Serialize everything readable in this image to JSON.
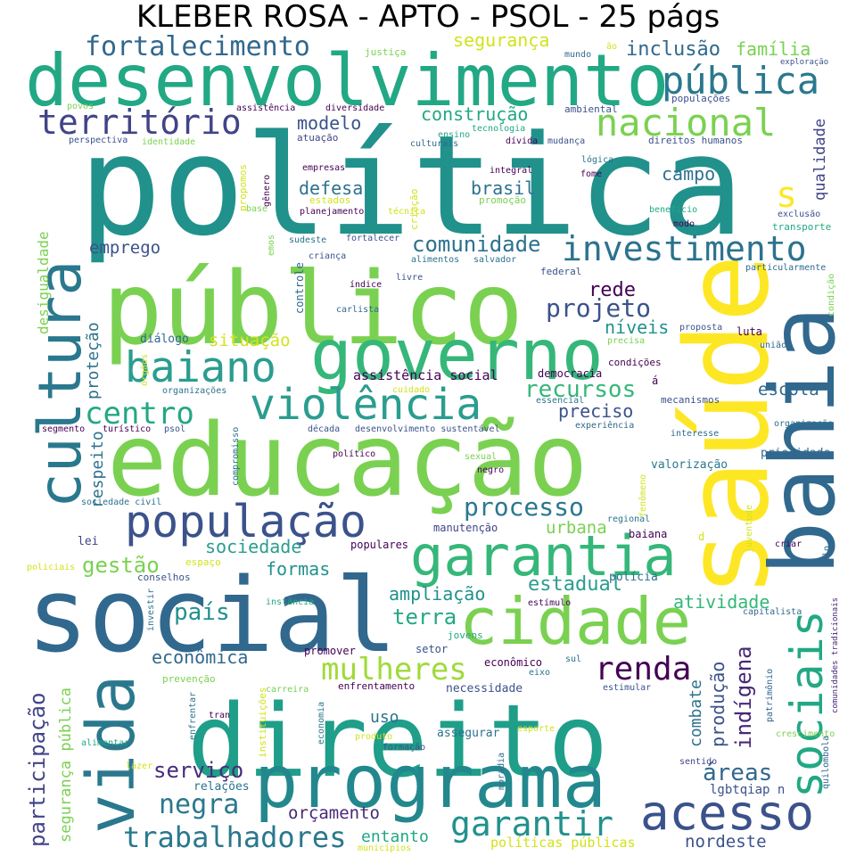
{
  "title": "KLEBER ROSA - APTO - PSOL - 25 págs",
  "words": [
    {
      "text": "política",
      "color": "#21918c"
    },
    {
      "text": "público",
      "color": "#7ad151"
    },
    {
      "text": "educação",
      "color": "#7ad151"
    },
    {
      "text": "social",
      "color": "#31688e"
    },
    {
      "text": "direito",
      "color": "#1f9e89"
    },
    {
      "text": "saúde",
      "color": "#fde725"
    },
    {
      "text": "bahia",
      "color": "#31688e"
    },
    {
      "text": "desenvolvimento",
      "color": "#22a884"
    },
    {
      "text": "programa",
      "color": "#23888e"
    },
    {
      "text": "cultura",
      "color": "#2a788e"
    },
    {
      "text": "vida",
      "color": "#2a788e"
    },
    {
      "text": "governo",
      "color": "#35b779"
    },
    {
      "text": "cidade",
      "color": "#7ad151"
    },
    {
      "text": "garantia",
      "color": "#35b779"
    },
    {
      "text": "população",
      "color": "#3b528b"
    },
    {
      "text": "violência",
      "color": "#2a9d8f"
    },
    {
      "text": "baiano",
      "color": "#2a9d8f"
    },
    {
      "text": "sociais",
      "color": "#22a884"
    },
    {
      "text": "acesso",
      "color": "#3b528b"
    },
    {
      "text": "pública",
      "color": "#2a788e"
    },
    {
      "text": "nacional",
      "color": "#7ad151"
    },
    {
      "text": "investimento",
      "color": "#2c728e"
    },
    {
      "text": "território",
      "color": "#414487"
    },
    {
      "text": "fortalecimento",
      "color": "#31688e"
    },
    {
      "text": "centro",
      "color": "#22a884"
    },
    {
      "text": "garantir",
      "color": "#21918c"
    },
    {
      "text": "mulheres",
      "color": "#a0da39"
    },
    {
      "text": "renda",
      "color": "#440154"
    },
    {
      "text": "processo",
      "color": "#2a788e"
    },
    {
      "text": "trabalhadores",
      "color": "#2a788e"
    },
    {
      "text": "negra",
      "color": "#2a788e"
    },
    {
      "text": "comunidade",
      "color": "#2c728e"
    },
    {
      "text": "s",
      "color": "#fde725"
    },
    {
      "text": "projeto",
      "color": "#3b528b"
    },
    {
      "text": "recursos",
      "color": "#35b779"
    },
    {
      "text": "gestão",
      "color": "#7ad151"
    },
    {
      "text": "país",
      "color": "#21918c"
    },
    {
      "text": "participação",
      "color": "#414487"
    },
    {
      "text": "áreas",
      "color": "#31688e"
    },
    {
      "text": "indígena",
      "color": "#482878"
    },
    {
      "text": "serviço",
      "color": "#472d7b"
    },
    {
      "text": "terra",
      "color": "#22a884"
    },
    {
      "text": "estadual",
      "color": "#2a9d8f"
    },
    {
      "text": "construção",
      "color": "#22a884"
    },
    {
      "text": "modelo",
      "color": "#3b528b"
    },
    {
      "text": "defesa",
      "color": "#2c728e"
    },
    {
      "text": "brasil",
      "color": "#2c728e"
    },
    {
      "text": "campo",
      "color": "#2c728e"
    },
    {
      "text": "inclusão",
      "color": "#31688e"
    },
    {
      "text": "família",
      "color": "#7ad151"
    },
    {
      "text": "segurança",
      "color": "#d2e21b"
    },
    {
      "text": "emprego",
      "color": "#3b528b"
    },
    {
      "text": "rede",
      "color": "#440154"
    },
    {
      "text": "níveis",
      "color": "#21918c"
    },
    {
      "text": "situação",
      "color": "#d2e21b"
    },
    {
      "text": "preciso",
      "color": "#3b528b"
    },
    {
      "text": "escola",
      "color": "#31688e"
    },
    {
      "text": "ampliação",
      "color": "#21918c"
    },
    {
      "text": "formas",
      "color": "#21918c"
    },
    {
      "text": "sociedade",
      "color": "#2a9d8f"
    },
    {
      "text": "urbana",
      "color": "#7ad151"
    },
    {
      "text": "econômica",
      "color": "#31688e"
    },
    {
      "text": "atividade",
      "color": "#35b779"
    },
    {
      "text": "produção",
      "color": "#3b528b"
    },
    {
      "text": "combate",
      "color": "#2c728e"
    },
    {
      "text": "orçamento",
      "color": "#482878"
    },
    {
      "text": "entanto",
      "color": "#22a884"
    },
    {
      "text": "nordeste",
      "color": "#3b528b"
    },
    {
      "text": "segurança pública",
      "color": "#7ad151"
    },
    {
      "text": "uso",
      "color": "#2c728e"
    },
    {
      "text": "qualidade",
      "color": "#414487"
    },
    {
      "text": "proteção",
      "color": "#2c728e"
    },
    {
      "text": "respeito",
      "color": "#2c728e"
    },
    {
      "text": "desigualdade",
      "color": "#7ad151"
    },
    {
      "text": "lgbtqiap n",
      "color": "#3b528b"
    },
    {
      "text": "políticas públicas",
      "color": "#d2e21b"
    },
    {
      "text": "relações",
      "color": "#2c728e"
    },
    {
      "text": "necessidade",
      "color": "#3b528b"
    },
    {
      "text": "assegurar",
      "color": "#2c728e"
    },
    {
      "text": "assistência social",
      "color": "#440154"
    },
    {
      "text": "valorização",
      "color": "#2a788e"
    },
    {
      "text": "prioridade",
      "color": "#31688e"
    },
    {
      "text": "lei",
      "color": "#414487"
    },
    {
      "text": "manutenção",
      "color": "#414487"
    },
    {
      "text": "baiana",
      "color": "#440154"
    },
    {
      "text": "luta",
      "color": "#440154"
    },
    {
      "text": "diálogo",
      "color": "#31688e"
    },
    {
      "text": "controle",
      "color": "#31688e"
    },
    {
      "text": "democracia",
      "color": "#440154"
    },
    {
      "text": "condições",
      "color": "#440154"
    },
    {
      "text": "mecanismos",
      "color": "#3b528b"
    },
    {
      "text": "econômico",
      "color": "#440154"
    },
    {
      "text": "promover",
      "color": "#440154"
    },
    {
      "text": "setor",
      "color": "#3b528b"
    },
    {
      "text": "jovens",
      "color": "#22a884"
    },
    {
      "text": "polícia",
      "color": "#2c728e"
    },
    {
      "text": "populares",
      "color": "#440154"
    },
    {
      "text": "espaço",
      "color": "#d2e21b"
    },
    {
      "text": "conselhos",
      "color": "#3b528b"
    },
    {
      "text": "instância",
      "color": "#22a884"
    },
    {
      "text": "investir",
      "color": "#2c728e"
    },
    {
      "text": "prevenção",
      "color": "#7ad151"
    },
    {
      "text": "instituições",
      "color": "#d2e21b"
    },
    {
      "text": "carreira",
      "color": "#7ad151"
    },
    {
      "text": "enfrentamento",
      "color": "#440154"
    },
    {
      "text": "estímulo",
      "color": "#440154"
    },
    {
      "text": "eixo",
      "color": "#2c728e"
    },
    {
      "text": "sul",
      "color": "#2c728e"
    },
    {
      "text": "estimular",
      "color": "#3b528b"
    },
    {
      "text": "patrimônio",
      "color": "#31688e"
    },
    {
      "text": "comunidades tradicionais",
      "color": "#482878"
    },
    {
      "text": "quilombola",
      "color": "#31688e"
    },
    {
      "text": "crescimento",
      "color": "#7ad151"
    },
    {
      "text": "sentido",
      "color": "#414487"
    },
    {
      "text": "esporte",
      "color": "#d2e21b"
    },
    {
      "text": "formação",
      "color": "#3b528b"
    },
    {
      "text": "produto",
      "color": "#d2e21b"
    },
    {
      "text": "economia",
      "color": "#2a788e"
    },
    {
      "text": "enfrentar",
      "color": "#2c728e"
    },
    {
      "text": "alimentar",
      "color": "#22a884"
    },
    {
      "text": "tran",
      "color": "#440154"
    },
    {
      "text": "lazer",
      "color": "#d2e21b"
    },
    {
      "text": "moradia",
      "color": "#2c728e"
    },
    {
      "text": "municípios",
      "color": "#d2e21b"
    },
    {
      "text": "policiais",
      "color": "#d2e21b"
    },
    {
      "text": "sociedade civil",
      "color": "#2c728e"
    },
    {
      "text": "compromisso",
      "color": "#2c728e"
    },
    {
      "text": "segmento",
      "color": "#440154"
    },
    {
      "text": "turístico",
      "color": "#440154"
    },
    {
      "text": "psol",
      "color": "#3b528b"
    },
    {
      "text": "década",
      "color": "#3b528b"
    },
    {
      "text": "desenvolvimento sustentável",
      "color": "#3b528b"
    },
    {
      "text": "experiência",
      "color": "#31688e"
    },
    {
      "text": "interesse",
      "color": "#31688e"
    },
    {
      "text": "político",
      "color": "#440154"
    },
    {
      "text": "sexual",
      "color": "#7ad151"
    },
    {
      "text": "negro",
      "color": "#440154"
    },
    {
      "text": "fenômeno",
      "color": "#d2e21b"
    },
    {
      "text": "regional",
      "color": "#2c728e"
    },
    {
      "text": "juventude",
      "color": "#d2e21b"
    },
    {
      "text": "d",
      "color": "#d2e21b"
    },
    {
      "text": "criar",
      "color": "#440154"
    },
    {
      "text": "polo",
      "color": "#31688e"
    },
    {
      "text": "capitalista",
      "color": "#31688e"
    },
    {
      "text": "organização",
      "color": "#2c728e"
    },
    {
      "text": "cuidado",
      "color": "#d2e21b"
    },
    {
      "text": "essencial",
      "color": "#2c728e"
    },
    {
      "text": "á",
      "color": "#440154"
    },
    {
      "text": "organizações",
      "color": "#2c728e"
    },
    {
      "text": "órgãos",
      "color": "#d2e21b"
    },
    {
      "text": "precisa",
      "color": "#7ad151"
    },
    {
      "text": "proposta",
      "color": "#3b528b"
    },
    {
      "text": "união",
      "color": "#31688e"
    },
    {
      "text": "federal",
      "color": "#3b528b"
    },
    {
      "text": "particularmente",
      "color": "#31688e"
    },
    {
      "text": "condição",
      "color": "#7ad151"
    },
    {
      "text": "índice",
      "color": "#440154"
    },
    {
      "text": "livre",
      "color": "#3b528b"
    },
    {
      "text": "carlista",
      "color": "#31688e"
    },
    {
      "text": "alimentos",
      "color": "#2c728e"
    },
    {
      "text": "salvador",
      "color": "#2c728e"
    },
    {
      "text": "sudeste",
      "color": "#2c728e"
    },
    {
      "text": "fortalecer",
      "color": "#3b528b"
    },
    {
      "text": "criança",
      "color": "#3b528b"
    },
    {
      "text": "emos",
      "color": "#7ad151"
    },
    {
      "text": "exclusão",
      "color": "#3b528b"
    },
    {
      "text": "transporte",
      "color": "#22a884"
    },
    {
      "text": "modo",
      "color": "#440154"
    },
    {
      "text": "benefício",
      "color": "#22a884"
    },
    {
      "text": "fome",
      "color": "#440154"
    },
    {
      "text": "lógica",
      "color": "#2c728e"
    },
    {
      "text": "integral",
      "color": "#440154"
    },
    {
      "text": "técnica",
      "color": "#d2e21b"
    },
    {
      "text": "criação",
      "color": "#d2e21b"
    },
    {
      "text": "promoção",
      "color": "#7ad151"
    },
    {
      "text": "estados",
      "color": "#d2e21b"
    },
    {
      "text": "planejamento",
      "color": "#440154"
    },
    {
      "text": "base",
      "color": "#7ad151"
    },
    {
      "text": "gênero",
      "color": "#440154"
    },
    {
      "text": "empresas",
      "color": "#440154"
    },
    {
      "text": "propomos",
      "color": "#d2e21b"
    },
    {
      "text": "perspectiva",
      "color": "#3b528b"
    },
    {
      "text": "identidade",
      "color": "#7ad151"
    },
    {
      "text": "atuação",
      "color": "#414487"
    },
    {
      "text": "culturais",
      "color": "#31688e"
    },
    {
      "text": "ensino",
      "color": "#22a884"
    },
    {
      "text": "tecnologia",
      "color": "#22a884"
    },
    {
      "text": "dívida",
      "color": "#440154"
    },
    {
      "text": "mudança",
      "color": "#3b528b"
    },
    {
      "text": "direitos humanos",
      "color": "#3b528b"
    },
    {
      "text": "populações",
      "color": "#3b528b"
    },
    {
      "text": "ambiental",
      "color": "#3b528b"
    },
    {
      "text": "assistência",
      "color": "#440154"
    },
    {
      "text": "diversidade",
      "color": "#440154"
    },
    {
      "text": "povos",
      "color": "#7ad151"
    },
    {
      "text": "justiça",
      "color": "#7ad151"
    },
    {
      "text": "mundo",
      "color": "#31688e"
    },
    {
      "text": "ão",
      "color": "#d2e21b"
    },
    {
      "text": "exploração",
      "color": "#3b528b"
    }
  ]
}
